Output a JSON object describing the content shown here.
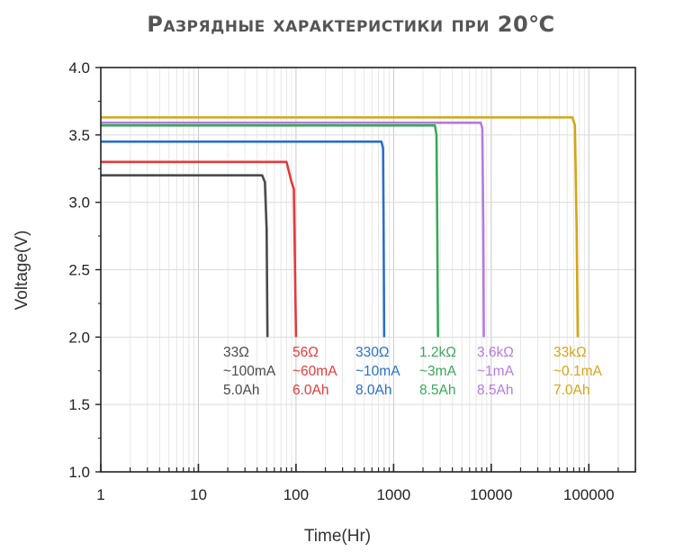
{
  "chart_data": {
    "type": "line",
    "title": "Разрядные характеристики при 20℃",
    "xlabel": "Time(Hr)",
    "ylabel": "Voltage(V)",
    "x_scale": "log",
    "xlim": [
      1,
      300000
    ],
    "ylim": [
      1.0,
      4.0
    ],
    "x_ticks": [
      1,
      10,
      100,
      1000,
      10000,
      100000
    ],
    "x_tick_labels": [
      "1",
      "10",
      "100",
      "1000",
      "10000",
      "100000"
    ],
    "y_ticks": [
      1.0,
      1.5,
      2.0,
      2.5,
      3.0,
      3.5,
      4.0
    ],
    "y_tick_labels": [
      "1.0",
      "1.5",
      "2.0",
      "2.5",
      "3.0",
      "3.5",
      "4.0"
    ],
    "grid": true,
    "series": [
      {
        "name": "33Ω",
        "lines": [
          "33Ω",
          "~100mA",
          "5.0Ah"
        ],
        "color": "#4a4a4a",
        "points": [
          [
            1,
            3.2
          ],
          [
            45,
            3.2
          ],
          [
            48,
            3.15
          ],
          [
            50,
            2.8
          ],
          [
            51,
            2.0
          ]
        ]
      },
      {
        "name": "56Ω",
        "lines": [
          "56Ω",
          "~60mA",
          "6.0Ah"
        ],
        "color": "#e5393b",
        "points": [
          [
            1,
            3.3
          ],
          [
            80,
            3.3
          ],
          [
            90,
            3.15
          ],
          [
            95,
            3.1
          ],
          [
            100,
            2.0
          ]
        ]
      },
      {
        "name": "330Ω",
        "lines": [
          "330Ω",
          "~10mA",
          "8.0Ah"
        ],
        "color": "#2a6fcc",
        "points": [
          [
            1,
            3.45
          ],
          [
            750,
            3.45
          ],
          [
            780,
            3.4
          ],
          [
            790,
            2.8
          ],
          [
            800,
            2.0
          ]
        ]
      },
      {
        "name": "1.2kΩ",
        "lines": [
          "1.2kΩ",
          "~3mA",
          "8.5Ah"
        ],
        "color": "#3aa85a",
        "points": [
          [
            1,
            3.57
          ],
          [
            2650,
            3.57
          ],
          [
            2750,
            3.5
          ],
          [
            2800,
            2.8
          ],
          [
            2850,
            2.0
          ]
        ]
      },
      {
        "name": "3.6kΩ",
        "lines": [
          "3.6kΩ",
          "~1mA",
          "8.5Ah"
        ],
        "color": "#b57ae0",
        "points": [
          [
            1,
            3.59
          ],
          [
            7800,
            3.59
          ],
          [
            8100,
            3.55
          ],
          [
            8300,
            2.8
          ],
          [
            8400,
            2.0
          ]
        ]
      },
      {
        "name": "33kΩ",
        "lines": [
          "33kΩ",
          "~0.1mA",
          "7.0Ah"
        ],
        "color": "#d4a516",
        "points": [
          [
            1,
            3.63
          ],
          [
            68000,
            3.63
          ],
          [
            72000,
            3.57
          ],
          [
            75000,
            2.8
          ],
          [
            77000,
            2.0
          ]
        ]
      }
    ]
  }
}
